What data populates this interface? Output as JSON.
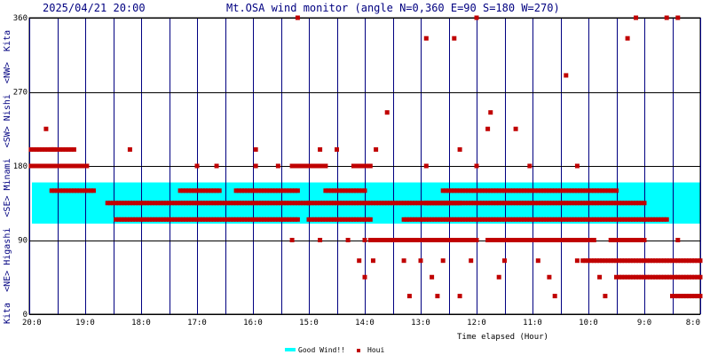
{
  "header": {
    "datetime": "2025/04/21 20:00",
    "title": "Mt.OSA wind monitor (angle N=0,360 E=90 S=180 W=270)"
  },
  "side_label": "Kita  <NE> Higashi  <SE> Minami  <SW> Nishi  <NW>  Kita",
  "colors": {
    "background": "#ffffff",
    "grid": "#000080",
    "good_band": "#00ffff",
    "marker": "#c00000",
    "text": "#000080"
  },
  "chart_data": {
    "type": "scatter",
    "title": "Mt.OSA wind monitor (angle N=0,360 E=90 S=180 W=270)",
    "xlabel": "Time elapsed (Hour)",
    "ylabel": "Kita  <NE> Higashi  <SE> Minami  <SW> Nishi  <NW>  Kita",
    "xlim": [
      20,
      8
    ],
    "x_ticks": [
      "20:0",
      "19:0",
      "18:0",
      "17:0",
      "16:0",
      "15:0",
      "14:0",
      "13:0",
      "12:0",
      "11:0",
      "10:0",
      "9:0",
      "8:0"
    ],
    "ylim": [
      0,
      360
    ],
    "y_ticks": [
      0,
      90,
      180,
      270,
      360
    ],
    "grid": true,
    "legend_position": "bottom-center",
    "legend": [
      {
        "label": "Good Wind!!",
        "kind": "band"
      },
      {
        "label": "Houi",
        "kind": "marker"
      }
    ],
    "good_wind_band": {
      "from": 110,
      "to": 160
    },
    "series": [
      {
        "name": "Houi",
        "segments": [
          {
            "y": 200,
            "x": [
              19.97,
              19.55
            ]
          },
          {
            "y": 180,
            "x": [
              19.97,
              18.95
            ]
          },
          {
            "y": 150,
            "x": [
              19.6,
              18.85
            ]
          },
          {
            "y": 135,
            "x": [
              18.6,
              15.0
            ]
          },
          {
            "y": 115,
            "x": [
              18.45,
              15.2
            ]
          },
          {
            "y": 200,
            "x": [
              19.6,
              19.2
            ]
          },
          {
            "y": 150,
            "x": [
              17.3,
              16.6
            ]
          },
          {
            "y": 150,
            "x": [
              16.3,
              15.2
            ]
          },
          {
            "y": 135,
            "x": [
              15.0,
              12.3
            ]
          },
          {
            "y": 115,
            "x": [
              15.0,
              13.9
            ]
          },
          {
            "y": 150,
            "x": [
              14.7,
              14.0
            ]
          },
          {
            "y": 180,
            "x": [
              15.3,
              14.7
            ]
          },
          {
            "y": 180,
            "x": [
              14.2,
              13.9
            ]
          },
          {
            "y": 90,
            "x": [
              13.9,
              12.0
            ]
          },
          {
            "y": 90,
            "x": [
              11.8,
              9.9
            ]
          },
          {
            "y": 115,
            "x": [
              13.3,
              8.6
            ]
          },
          {
            "y": 135,
            "x": [
              12.9,
              9.0
            ]
          },
          {
            "y": 150,
            "x": [
              12.6,
              9.5
            ]
          },
          {
            "y": 90,
            "x": [
              9.6,
              9.0
            ]
          },
          {
            "y": 65,
            "x": [
              10.1,
              8.0
            ]
          },
          {
            "y": 45,
            "x": [
              9.5,
              8.0
            ]
          },
          {
            "y": 22,
            "x": [
              8.5,
              8.0
            ]
          }
        ],
        "points": [
          {
            "x": 19.7,
            "y": 225
          },
          {
            "x": 18.2,
            "y": 200
          },
          {
            "x": 17.0,
            "y": 180
          },
          {
            "x": 16.65,
            "y": 180
          },
          {
            "x": 15.95,
            "y": 200
          },
          {
            "x": 15.95,
            "y": 180
          },
          {
            "x": 15.55,
            "y": 180
          },
          {
            "x": 15.2,
            "y": 360
          },
          {
            "x": 15.3,
            "y": 90
          },
          {
            "x": 14.8,
            "y": 200
          },
          {
            "x": 14.5,
            "y": 200
          },
          {
            "x": 14.8,
            "y": 90
          },
          {
            "x": 14.3,
            "y": 90
          },
          {
            "x": 14.0,
            "y": 90
          },
          {
            "x": 13.8,
            "y": 200
          },
          {
            "x": 14.1,
            "y": 65
          },
          {
            "x": 14.0,
            "y": 45
          },
          {
            "x": 13.85,
            "y": 65
          },
          {
            "x": 13.6,
            "y": 245
          },
          {
            "x": 13.3,
            "y": 65
          },
          {
            "x": 13.2,
            "y": 22
          },
          {
            "x": 13.0,
            "y": 65
          },
          {
            "x": 12.9,
            "y": 335
          },
          {
            "x": 12.9,
            "y": 180
          },
          {
            "x": 12.8,
            "y": 45
          },
          {
            "x": 12.7,
            "y": 22
          },
          {
            "x": 12.6,
            "y": 65
          },
          {
            "x": 12.4,
            "y": 335
          },
          {
            "x": 12.3,
            "y": 200
          },
          {
            "x": 12.3,
            "y": 22
          },
          {
            "x": 12.0,
            "y": 360
          },
          {
            "x": 12.0,
            "y": 180
          },
          {
            "x": 12.1,
            "y": 65
          },
          {
            "x": 11.8,
            "y": 225
          },
          {
            "x": 11.75,
            "y": 245
          },
          {
            "x": 11.6,
            "y": 45
          },
          {
            "x": 11.5,
            "y": 65
          },
          {
            "x": 11.3,
            "y": 225
          },
          {
            "x": 11.05,
            "y": 180
          },
          {
            "x": 10.9,
            "y": 65
          },
          {
            "x": 10.7,
            "y": 45
          },
          {
            "x": 10.6,
            "y": 22
          },
          {
            "x": 10.4,
            "y": 290
          },
          {
            "x": 10.2,
            "y": 180
          },
          {
            "x": 10.2,
            "y": 65
          },
          {
            "x": 9.8,
            "y": 45
          },
          {
            "x": 9.7,
            "y": 22
          },
          {
            "x": 9.3,
            "y": 335
          },
          {
            "x": 9.15,
            "y": 360
          },
          {
            "x": 8.6,
            "y": 360
          },
          {
            "x": 8.4,
            "y": 360
          },
          {
            "x": 8.4,
            "y": 90
          }
        ]
      }
    ]
  }
}
